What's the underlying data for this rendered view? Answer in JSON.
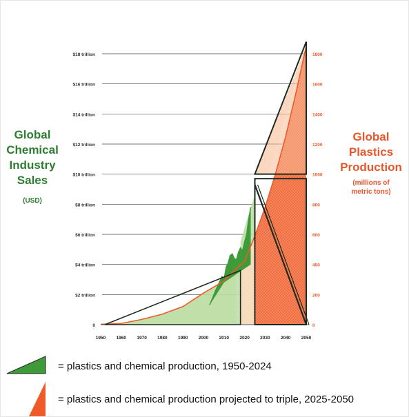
{
  "chart_data": {
    "type": "area",
    "left_axis_title": [
      "Global",
      "Chemical",
      "Industry",
      "Sales"
    ],
    "left_axis_unit": "(USD)",
    "right_axis_title": [
      "Global",
      "Plastics",
      "Production"
    ],
    "right_axis_unit": [
      "(millions of",
      "metric tons)"
    ],
    "x_ticks": [
      "1950",
      "1960",
      "1970",
      "1980",
      "1990",
      "2000",
      "2010",
      "2020",
      "2030",
      "2040",
      "2050"
    ],
    "xlim": [
      1950,
      2050
    ],
    "left_ticks": [
      {
        "label": "0",
        "value": 0
      },
      {
        "label": "$2 trillion",
        "value": 2
      },
      {
        "label": "$4 trillion",
        "value": 4
      },
      {
        "label": "$6 trillion",
        "value": 6
      },
      {
        "label": "$8 trillion",
        "value": 8
      },
      {
        "label": "$10 trillion",
        "value": 10
      },
      {
        "label": "$12 trillion",
        "value": 12
      },
      {
        "label": "$14 trillion",
        "value": 14
      },
      {
        "label": "$16 trillion",
        "value": 16
      },
      {
        "label": "$18 trillion",
        "value": 18
      }
    ],
    "left_ylim": [
      0,
      18
    ],
    "right_ticks": [
      "0",
      "200",
      "400",
      "600",
      "800",
      "1000",
      "1200",
      "1400",
      "1600",
      "1800"
    ],
    "right_ylim": [
      0,
      1800
    ],
    "series": [
      {
        "key": "sales",
        "axis": "left",
        "color": "#3f9b3a",
        "x": [
          2003,
          2006,
          2009,
          2010,
          2011,
          2012,
          2013,
          2014,
          2015,
          2016,
          2017,
          2018,
          2019,
          2020,
          2021,
          2022,
          2023
        ],
        "y": [
          1.3,
          2.3,
          3.2,
          3.0,
          3.8,
          4.1,
          4.6,
          4.7,
          4.4,
          4.3,
          4.8,
          5.1,
          4.9,
          5.5,
          6.0,
          7.0,
          7.8
        ]
      },
      {
        "key": "plastics",
        "axis": "right",
        "color": "#ef5a2a",
        "x": [
          1950,
          1960,
          1970,
          1980,
          1990,
          2000,
          2010,
          2015,
          2020,
          2025,
          2030,
          2035,
          2040,
          2045,
          2050
        ],
        "y": [
          2,
          8,
          35,
          70,
          120,
          210,
          290,
          360,
          420,
          590,
          780,
          1000,
          1250,
          1540,
          1850
        ]
      }
    ],
    "colors": {
      "green": "#3f9b3a",
      "light_green": "#b9dca0",
      "orange": "#ef5a2a",
      "light_orange": "#f7b68c",
      "peach": "#f6d9b8",
      "outline": "#1d2a20",
      "grid": "#444444"
    }
  },
  "legend": [
    {
      "shape": "green-wedge-icon",
      "color": "#3f9b3a",
      "text": "= plastics and chemical production, 1950-2024"
    },
    {
      "shape": "orange-wedge-icon",
      "color": "#ef5a2a",
      "text": "= plastics and chemical production projected to triple, 2025-2050"
    }
  ]
}
